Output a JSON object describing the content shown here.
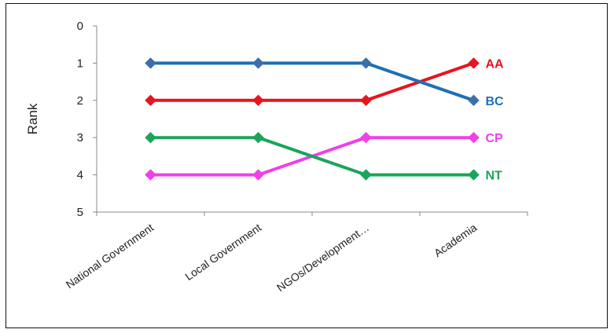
{
  "chart_data": {
    "type": "line",
    "ylabel": "Rank",
    "xlabel": "",
    "ylim": [
      0,
      5
    ],
    "y_reversed": true,
    "y_ticks": [
      "0",
      "1",
      "2",
      "3",
      "4",
      "5"
    ],
    "categories": [
      "National Government",
      "Local Government",
      "NGOs/Development…",
      "Academia"
    ],
    "legend": "right-end labels",
    "grid": false,
    "series": [
      {
        "name": "AA",
        "values": [
          2,
          2,
          2,
          1
        ],
        "color": "#e8141e"
      },
      {
        "name": "BC",
        "values": [
          1,
          1,
          1,
          2
        ],
        "color": "#1f6fb4",
        "marker_color": "#3c6fa8"
      },
      {
        "name": "CP",
        "values": [
          4,
          4,
          3,
          3
        ],
        "color": "#f040e8"
      },
      {
        "name": "NT",
        "values": [
          3,
          3,
          4,
          4
        ],
        "color": "#1aa55a"
      }
    ]
  }
}
